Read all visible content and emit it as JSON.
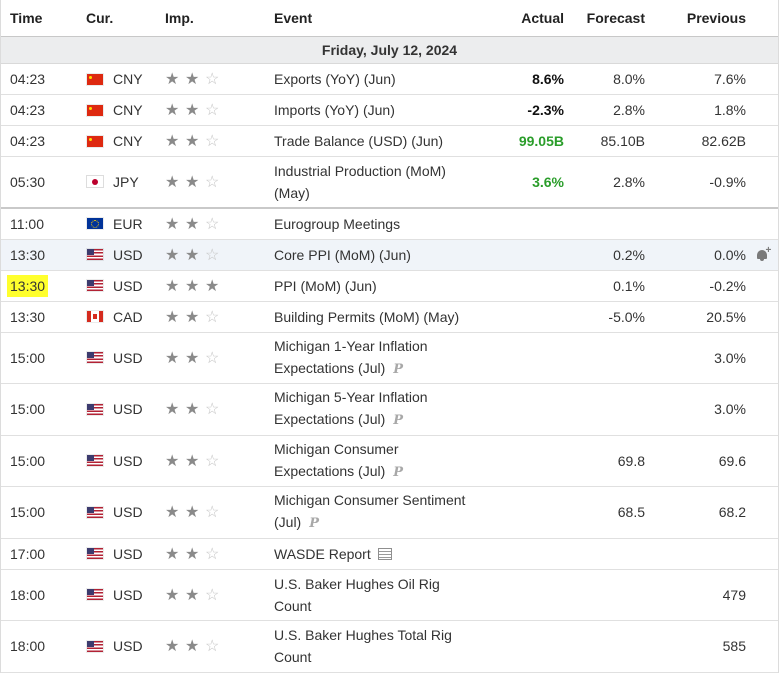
{
  "header": {
    "time": "Time",
    "currency": "Cur.",
    "importance": "Imp.",
    "event": "Event",
    "actual": "Actual",
    "forecast": "Forecast",
    "previous": "Previous"
  },
  "day_label": "Friday, July 12, 2024",
  "rows": [
    {
      "time": "04:23",
      "flag": "china-flag-icon",
      "cur": "CNY",
      "stars": 2,
      "event": "Exports (YoY) (Jun)",
      "actual": "8.6%",
      "actual_color": "#111111",
      "forecast": "8.0%",
      "previous": "7.6%"
    },
    {
      "time": "04:23",
      "flag": "china-flag-icon",
      "cur": "CNY",
      "stars": 2,
      "event": "Imports (YoY) (Jun)",
      "actual": "-2.3%",
      "actual_color": "#111111",
      "forecast": "2.8%",
      "previous": "1.8%"
    },
    {
      "time": "04:23",
      "flag": "china-flag-icon",
      "cur": "CNY",
      "stars": 2,
      "event": "Trade Balance (USD) (Jun)",
      "actual": "99.05B",
      "actual_color": "#2a9d2a",
      "forecast": "85.10B",
      "previous": "82.62B"
    },
    {
      "time": "05:30",
      "flag": "japan-flag-icon",
      "cur": "JPY",
      "stars": 2,
      "event_l1": "Industrial Production (MoM)",
      "event_l2": "(May)",
      "actual": "3.6%",
      "actual_color": "#2a9d2a",
      "forecast": "2.8%",
      "previous": "-0.9%"
    },
    {
      "time": "11:00",
      "flag": "eu-flag-icon",
      "cur": "EUR",
      "stars": 2,
      "event": "Eurogroup Meetings",
      "actual": "",
      "forecast": "",
      "previous": ""
    },
    {
      "time": "13:30",
      "flag": "us-flag-icon",
      "cur": "USD",
      "stars": 2,
      "event": "Core PPI (MoM) (Jun)",
      "actual": "",
      "forecast": "0.2%",
      "previous": "0.0%",
      "alert": "bell-plus-icon"
    },
    {
      "time": "13:30",
      "flag": "us-flag-icon",
      "cur": "USD",
      "stars": 3,
      "event": "PPI (MoM) (Jun)",
      "actual": "",
      "forecast": "0.1%",
      "previous": "-0.2%"
    },
    {
      "time": "13:30",
      "flag": "canada-flag-icon",
      "cur": "CAD",
      "stars": 2,
      "event": "Building Permits (MoM) (May)",
      "actual": "",
      "forecast": "-5.0%",
      "previous": "20.5%"
    },
    {
      "time": "15:00",
      "flag": "us-flag-icon",
      "cur": "USD",
      "stars": 2,
      "event_l1": "Michigan 1-Year Inflation",
      "event_l2": "Expectations (Jul)",
      "badge": "P",
      "actual": "",
      "forecast": "",
      "previous": "3.0%"
    },
    {
      "time": "15:00",
      "flag": "us-flag-icon",
      "cur": "USD",
      "stars": 2,
      "event_l1": "Michigan 5-Year Inflation",
      "event_l2": "Expectations (Jul)",
      "badge": "P",
      "actual": "",
      "forecast": "",
      "previous": "3.0%"
    },
    {
      "time": "15:00",
      "flag": "us-flag-icon",
      "cur": "USD",
      "stars": 2,
      "event_l1": "Michigan Consumer",
      "event_l2": "Expectations (Jul)",
      "badge": "P",
      "actual": "",
      "forecast": "69.8",
      "previous": "69.6"
    },
    {
      "time": "15:00",
      "flag": "us-flag-icon",
      "cur": "USD",
      "stars": 2,
      "event_l1": "Michigan Consumer Sentiment",
      "event_l2": "(Jul)",
      "badge": "P",
      "actual": "",
      "forecast": "68.5",
      "previous": "68.2"
    },
    {
      "time": "17:00",
      "flag": "us-flag-icon",
      "cur": "USD",
      "stars": 2,
      "event": "WASDE Report",
      "doc_icon": "document-icon",
      "actual": "",
      "forecast": "",
      "previous": ""
    },
    {
      "time": "18:00",
      "flag": "us-flag-icon",
      "cur": "USD",
      "stars": 2,
      "event_l1": "U.S. Baker Hughes Oil Rig",
      "event_l2": "Count",
      "actual": "",
      "forecast": "",
      "previous": "479"
    },
    {
      "time": "18:00",
      "flag": "us-flag-icon",
      "cur": "USD",
      "stars": 2,
      "event_l1": "U.S. Baker Hughes Total Rig",
      "event_l2": "Count",
      "actual": "",
      "forecast": "",
      "previous": "585"
    }
  ],
  "colors": {
    "highlight_time": "#ffff2d",
    "positive_actual": "#2a9d2a",
    "day_row_bg": "#ecedee"
  }
}
